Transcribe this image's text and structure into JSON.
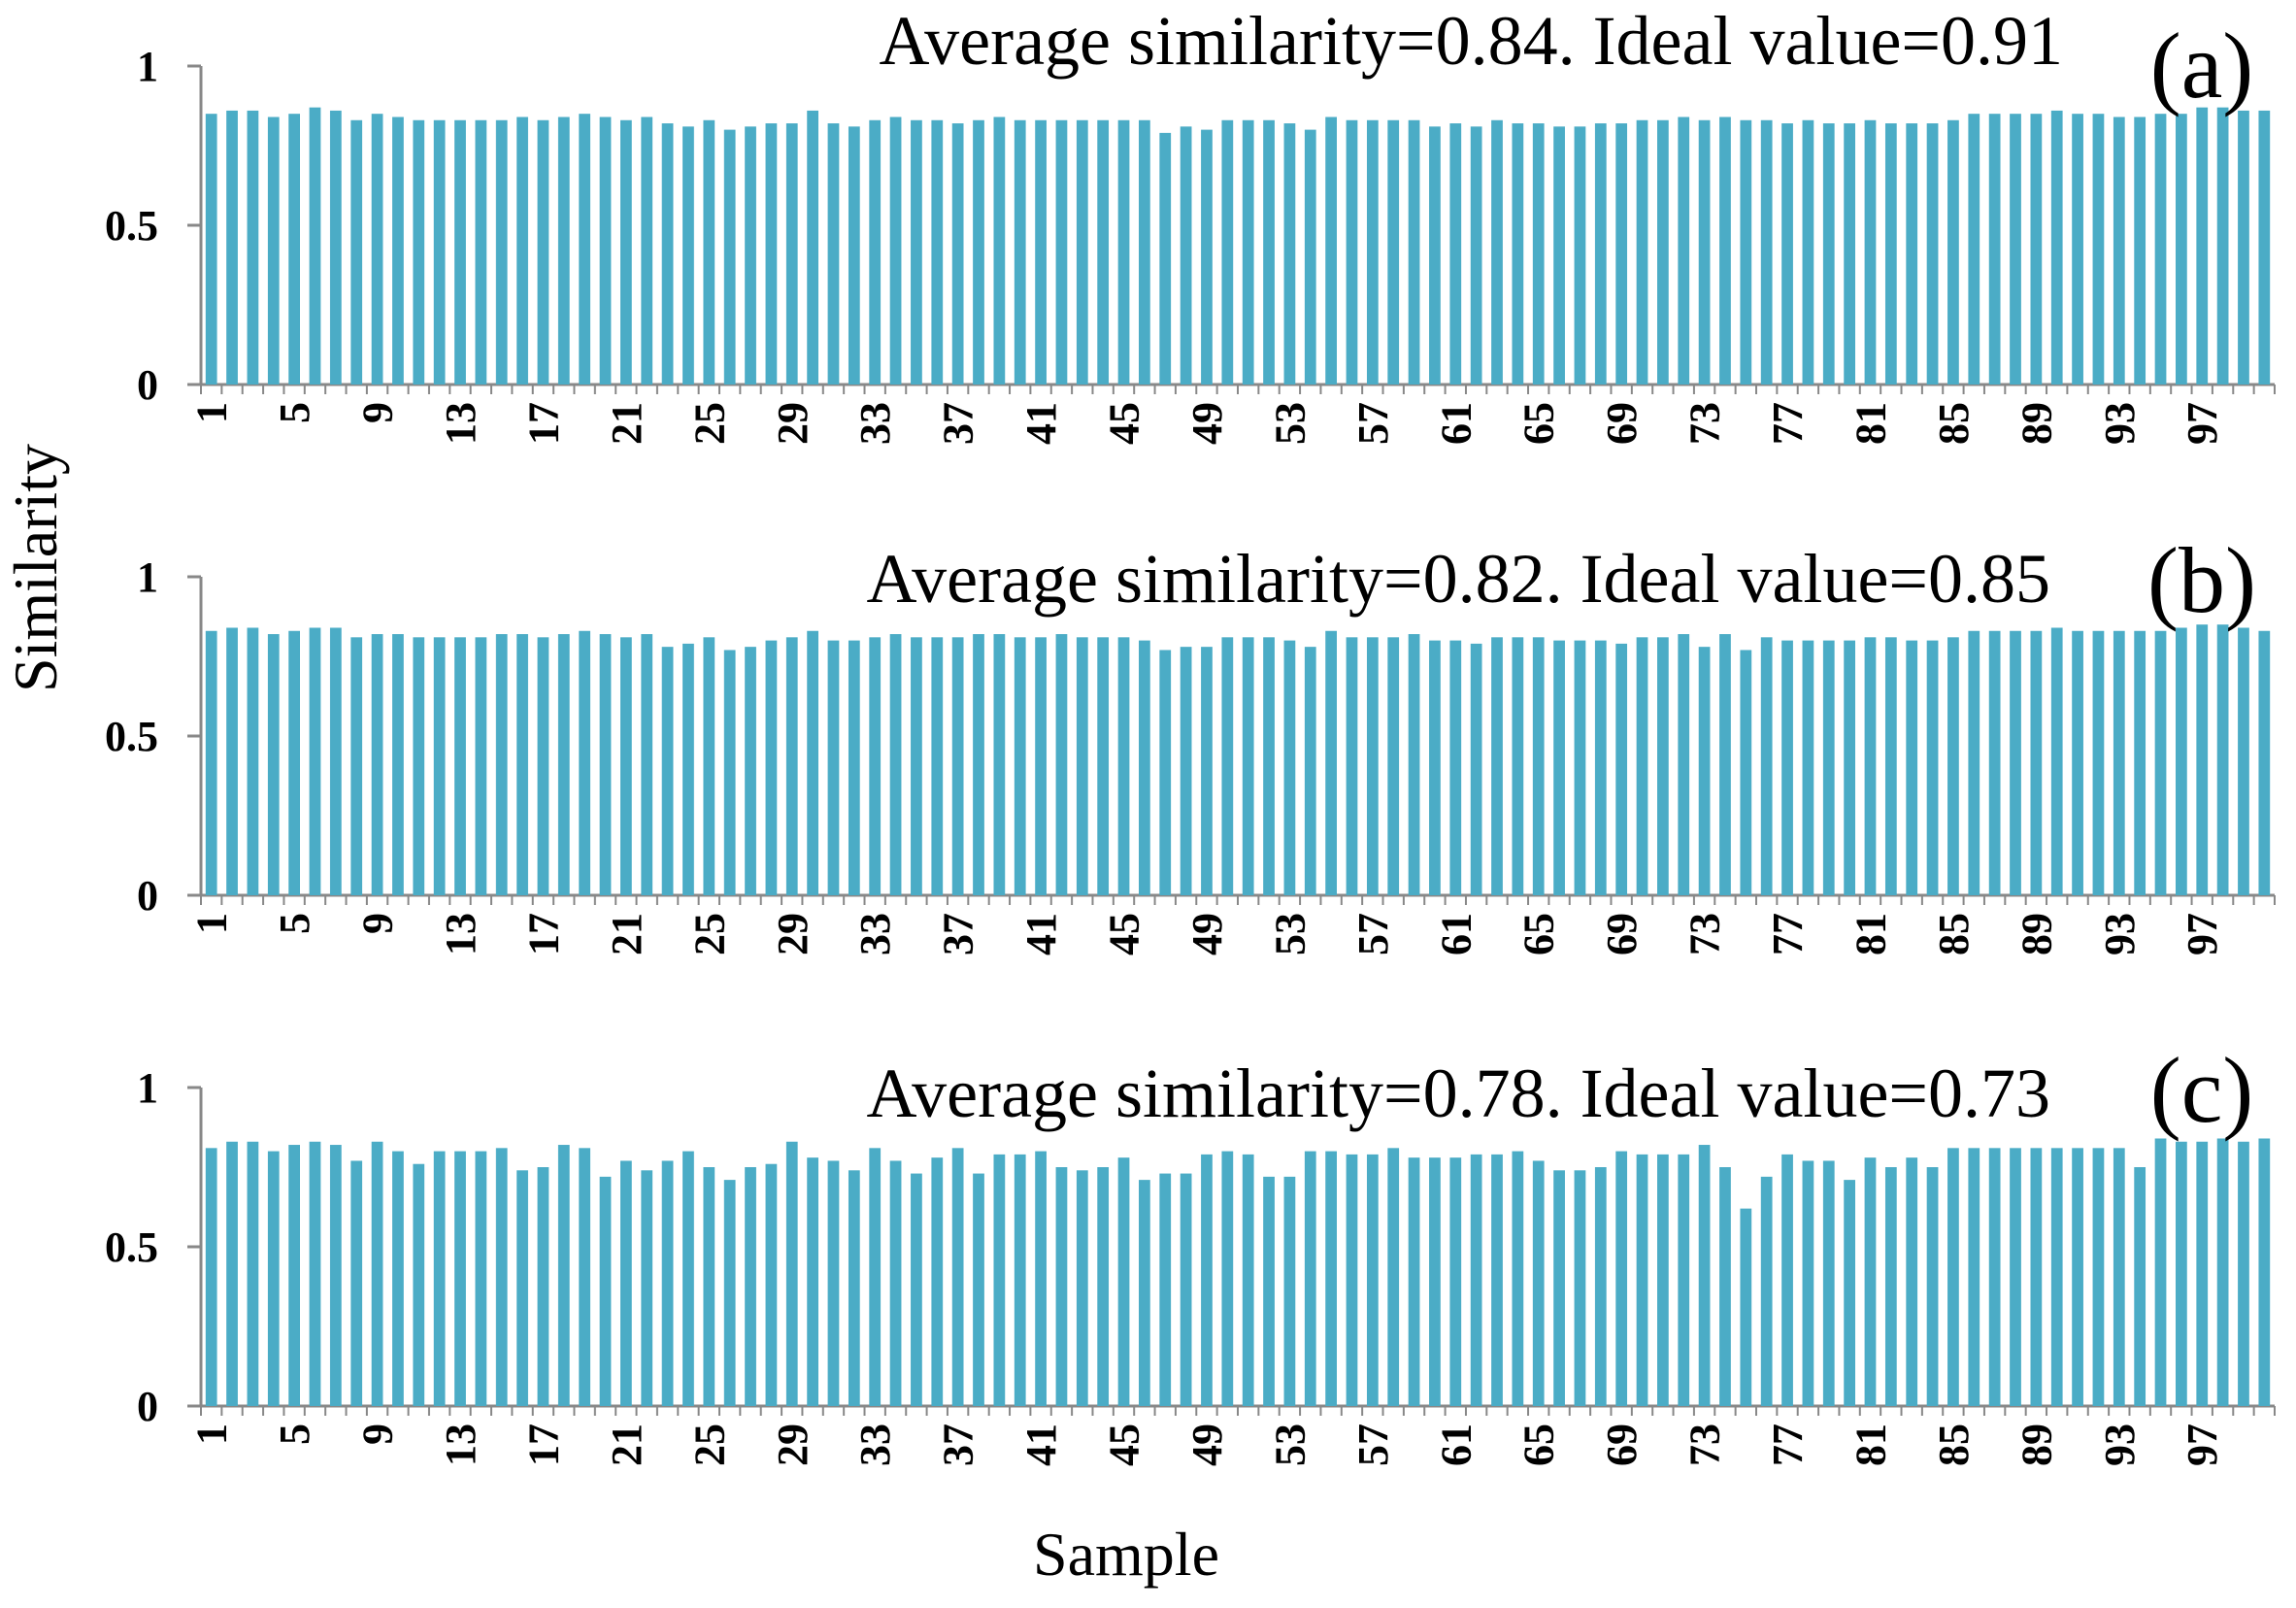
{
  "chart_data": {
    "type": "bar",
    "ylabel": "Similarity",
    "xlabel": "Sample",
    "bar_color": "#4bacc6",
    "axis_color": "#888888",
    "ylim": [
      0,
      1
    ],
    "y_ticks": [
      "0",
      "0.5",
      "1"
    ],
    "x_categories": [
      1,
      2,
      3,
      4,
      5,
      6,
      7,
      8,
      9,
      10,
      11,
      12,
      13,
      14,
      15,
      16,
      17,
      18,
      19,
      20,
      21,
      22,
      23,
      24,
      25,
      26,
      27,
      28,
      29,
      30,
      31,
      32,
      33,
      34,
      35,
      36,
      37,
      38,
      39,
      40,
      41,
      42,
      43,
      44,
      45,
      46,
      47,
      48,
      49,
      50,
      51,
      52,
      53,
      54,
      55,
      56,
      57,
      58,
      59,
      60,
      61,
      62,
      63,
      64,
      65,
      66,
      67,
      68,
      69,
      70,
      71,
      72,
      73,
      74,
      75,
      76,
      77,
      78,
      79,
      80,
      81,
      82,
      83,
      84,
      85,
      86,
      87,
      88,
      89,
      90,
      91,
      92,
      93,
      94,
      95,
      96,
      97,
      98,
      99,
      100
    ],
    "x_tick_labels": [
      "1",
      "5",
      "9",
      "13",
      "17",
      "21",
      "25",
      "29",
      "33",
      "37",
      "41",
      "45",
      "49",
      "53",
      "57",
      "61",
      "65",
      "69",
      "73",
      "77",
      "81",
      "85",
      "89",
      "93",
      "97"
    ],
    "panels": [
      {
        "label": "(a)",
        "annotation": "Average similarity=0.84. Ideal value=0.91",
        "values": [
          0.85,
          0.86,
          0.86,
          0.84,
          0.85,
          0.87,
          0.86,
          0.83,
          0.85,
          0.84,
          0.83,
          0.83,
          0.83,
          0.83,
          0.83,
          0.84,
          0.83,
          0.84,
          0.85,
          0.84,
          0.83,
          0.84,
          0.82,
          0.81,
          0.83,
          0.8,
          0.81,
          0.82,
          0.82,
          0.86,
          0.82,
          0.81,
          0.83,
          0.84,
          0.83,
          0.83,
          0.82,
          0.83,
          0.84,
          0.83,
          0.83,
          0.83,
          0.83,
          0.83,
          0.83,
          0.83,
          0.79,
          0.81,
          0.8,
          0.83,
          0.83,
          0.83,
          0.82,
          0.8,
          0.84,
          0.83,
          0.83,
          0.83,
          0.83,
          0.81,
          0.82,
          0.81,
          0.83,
          0.82,
          0.82,
          0.81,
          0.81,
          0.82,
          0.82,
          0.83,
          0.83,
          0.84,
          0.83,
          0.84,
          0.83,
          0.83,
          0.82,
          0.83,
          0.82,
          0.82,
          0.83,
          0.82,
          0.82,
          0.82,
          0.83,
          0.85,
          0.85,
          0.85,
          0.85,
          0.86,
          0.85,
          0.85,
          0.84,
          0.84,
          0.85,
          0.85,
          0.87,
          0.87,
          0.86,
          0.86
        ]
      },
      {
        "label": "(b)",
        "annotation": "Average similarity=0.82. Ideal value=0.85",
        "values": [
          0.83,
          0.84,
          0.84,
          0.82,
          0.83,
          0.84,
          0.84,
          0.81,
          0.82,
          0.82,
          0.81,
          0.81,
          0.81,
          0.81,
          0.82,
          0.82,
          0.81,
          0.82,
          0.83,
          0.82,
          0.81,
          0.82,
          0.78,
          0.79,
          0.81,
          0.77,
          0.78,
          0.8,
          0.81,
          0.83,
          0.8,
          0.8,
          0.81,
          0.82,
          0.81,
          0.81,
          0.81,
          0.82,
          0.82,
          0.81,
          0.81,
          0.82,
          0.81,
          0.81,
          0.81,
          0.8,
          0.77,
          0.78,
          0.78,
          0.81,
          0.81,
          0.81,
          0.8,
          0.78,
          0.83,
          0.81,
          0.81,
          0.81,
          0.82,
          0.8,
          0.8,
          0.79,
          0.81,
          0.81,
          0.81,
          0.8,
          0.8,
          0.8,
          0.79,
          0.81,
          0.81,
          0.82,
          0.78,
          0.82,
          0.77,
          0.81,
          0.8,
          0.8,
          0.8,
          0.8,
          0.81,
          0.81,
          0.8,
          0.8,
          0.81,
          0.83,
          0.83,
          0.83,
          0.83,
          0.84,
          0.83,
          0.83,
          0.83,
          0.83,
          0.83,
          0.84,
          0.85,
          0.85,
          0.84,
          0.83
        ]
      },
      {
        "label": "(c)",
        "annotation": "Average similarity=0.78. Ideal value=0.73",
        "values": [
          0.81,
          0.83,
          0.83,
          0.8,
          0.82,
          0.83,
          0.82,
          0.77,
          0.83,
          0.8,
          0.76,
          0.8,
          0.8,
          0.8,
          0.81,
          0.74,
          0.75,
          0.82,
          0.81,
          0.72,
          0.77,
          0.74,
          0.77,
          0.8,
          0.75,
          0.71,
          0.75,
          0.76,
          0.83,
          0.78,
          0.77,
          0.74,
          0.81,
          0.77,
          0.73,
          0.78,
          0.81,
          0.73,
          0.79,
          0.79,
          0.8,
          0.75,
          0.74,
          0.75,
          0.78,
          0.71,
          0.73,
          0.73,
          0.79,
          0.8,
          0.79,
          0.72,
          0.72,
          0.8,
          0.8,
          0.79,
          0.79,
          0.81,
          0.78,
          0.78,
          0.78,
          0.79,
          0.79,
          0.8,
          0.77,
          0.74,
          0.74,
          0.75,
          0.8,
          0.79,
          0.79,
          0.79,
          0.82,
          0.75,
          0.62,
          0.72,
          0.79,
          0.77,
          0.77,
          0.71,
          0.78,
          0.75,
          0.78,
          0.75,
          0.81,
          0.81,
          0.81,
          0.81,
          0.81,
          0.81,
          0.81,
          0.81,
          0.81,
          0.75,
          0.84,
          0.83,
          0.83,
          0.84,
          0.83,
          0.84
        ]
      }
    ]
  }
}
